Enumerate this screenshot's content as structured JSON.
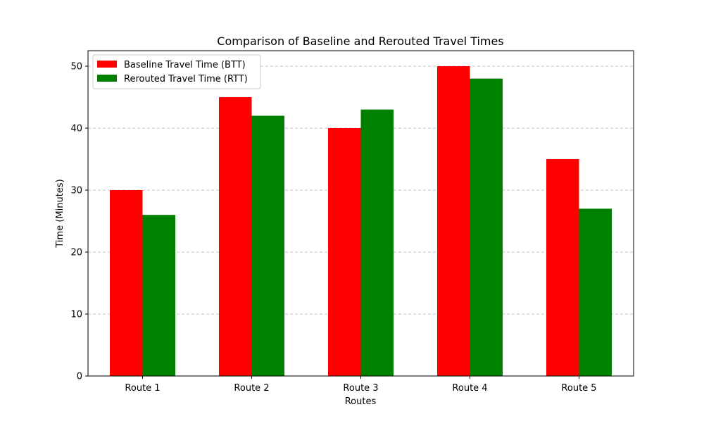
{
  "chart_data": {
    "type": "bar",
    "title": "Comparison of Baseline and Rerouted Travel Times",
    "xlabel": "Routes",
    "ylabel": "Time (Minutes)",
    "categories": [
      "Route 1",
      "Route 2",
      "Route 3",
      "Route 4",
      "Route 5"
    ],
    "series": [
      {
        "name": "Baseline Travel Time (BTT)",
        "color": "#ff0000",
        "values": [
          30,
          45,
          40,
          50,
          35
        ]
      },
      {
        "name": "Rerouted Travel Time (RTT)",
        "color": "#008000",
        "values": [
          26,
          42,
          43,
          48,
          27
        ]
      }
    ],
    "ylim": [
      0,
      52.5
    ],
    "yticks": [
      0,
      10,
      20,
      30,
      40,
      50
    ],
    "grid": "y-dashed",
    "legend_position": "top-left"
  }
}
